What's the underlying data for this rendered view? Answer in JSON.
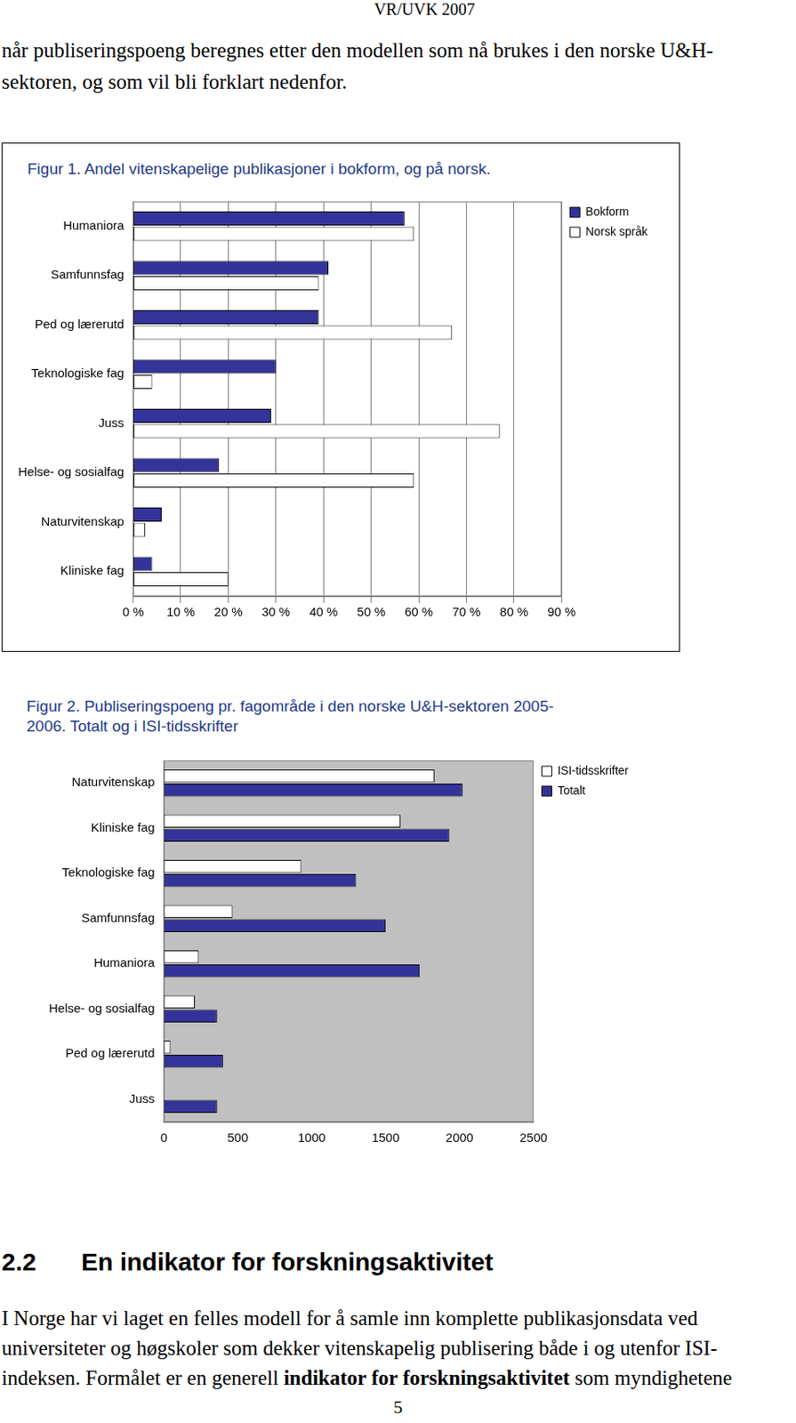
{
  "header": "VR/UVK 2007",
  "intro_lines": [
    "når publiseringspoeng beregnes etter den modellen som nå brukes i den norske U&H-",
    "sektoren, og som vil bli forklart nedenfor."
  ],
  "chart_data": [
    {
      "type": "bar",
      "orientation": "horizontal",
      "title": [
        "Figur 1. Andel vitenskapelige publikasjoner i bokform, og på norsk."
      ],
      "categories": [
        "Humaniora",
        "Samfunnsfag",
        "Ped og lærerutd",
        "Teknologiske fag",
        "Juss",
        "Helse- og sosialfag",
        "Naturvitenskap",
        "Kliniske fag"
      ],
      "series": [
        {
          "name": "Bokform",
          "color": "#333399",
          "values": [
            57,
            41,
            39,
            30,
            29,
            18,
            6,
            4
          ]
        },
        {
          "name": "Norsk språk",
          "color": "#ffffff",
          "values": [
            59,
            39,
            67,
            4,
            77,
            59,
            2.5,
            20
          ]
        }
      ],
      "xlim": [
        0,
        90
      ],
      "xticks": [
        {
          "value": 0,
          "label": "0 %"
        },
        {
          "value": 10,
          "label": "10 %"
        },
        {
          "value": 20,
          "label": "20 %"
        },
        {
          "value": 30,
          "label": "30 %"
        },
        {
          "value": 40,
          "label": "40 %"
        },
        {
          "value": 50,
          "label": "50 %"
        },
        {
          "value": 60,
          "label": "60 %"
        },
        {
          "value": 70,
          "label": "70 %"
        },
        {
          "value": 80,
          "label": "80 %"
        },
        {
          "value": 90,
          "label": "90 %"
        }
      ],
      "grid": true,
      "legend": "right"
    },
    {
      "type": "bar",
      "orientation": "horizontal",
      "title": [
        "Figur 2. Publiseringspoeng pr. fagområde i den norske U&H-sektoren 2005-",
        "2006. Totalt og i ISI-tidsskrifter"
      ],
      "categories": [
        "Naturvitenskap",
        "Kliniske fag",
        "Teknologiske fag",
        "Samfunnsfag",
        "Humaniora",
        "Helse- og sosialfag",
        "Ped og lærerutd",
        "Juss"
      ],
      "series": [
        {
          "name": "ISI-tidsskrifter",
          "color": "#ffffff",
          "values": [
            1830,
            1600,
            930,
            465,
            235,
            210,
            45,
            null
          ]
        },
        {
          "name": "Totalt",
          "color": "#333399",
          "values": [
            2020,
            1930,
            1300,
            1500,
            1730,
            360,
            400,
            360
          ]
        }
      ],
      "xlim": [
        0,
        2500
      ],
      "xticks": [
        0,
        500,
        1000,
        1500,
        2000,
        2500
      ],
      "grid": false,
      "legend": "right"
    }
  ],
  "heading": {
    "number": "2.2",
    "text": "En indikator for forskningsaktivitet"
  },
  "body_lines": [
    [
      {
        "text": "I Norge har vi laget en felles modell for å samle inn komplette publikasjonsdata ved",
        "bold": false
      }
    ],
    [
      {
        "text": "universiteter og høgskoler som dekker vitenskapelig publisering både i og utenfor ISI-",
        "bold": false
      }
    ],
    [
      {
        "text": "indeksen. Formålet er en generell ",
        "bold": false
      },
      {
        "text": "indikator for forskningsaktivitet",
        "bold": true
      },
      {
        "text": " som myndighetene",
        "bold": false
      }
    ]
  ],
  "page_number": "5"
}
